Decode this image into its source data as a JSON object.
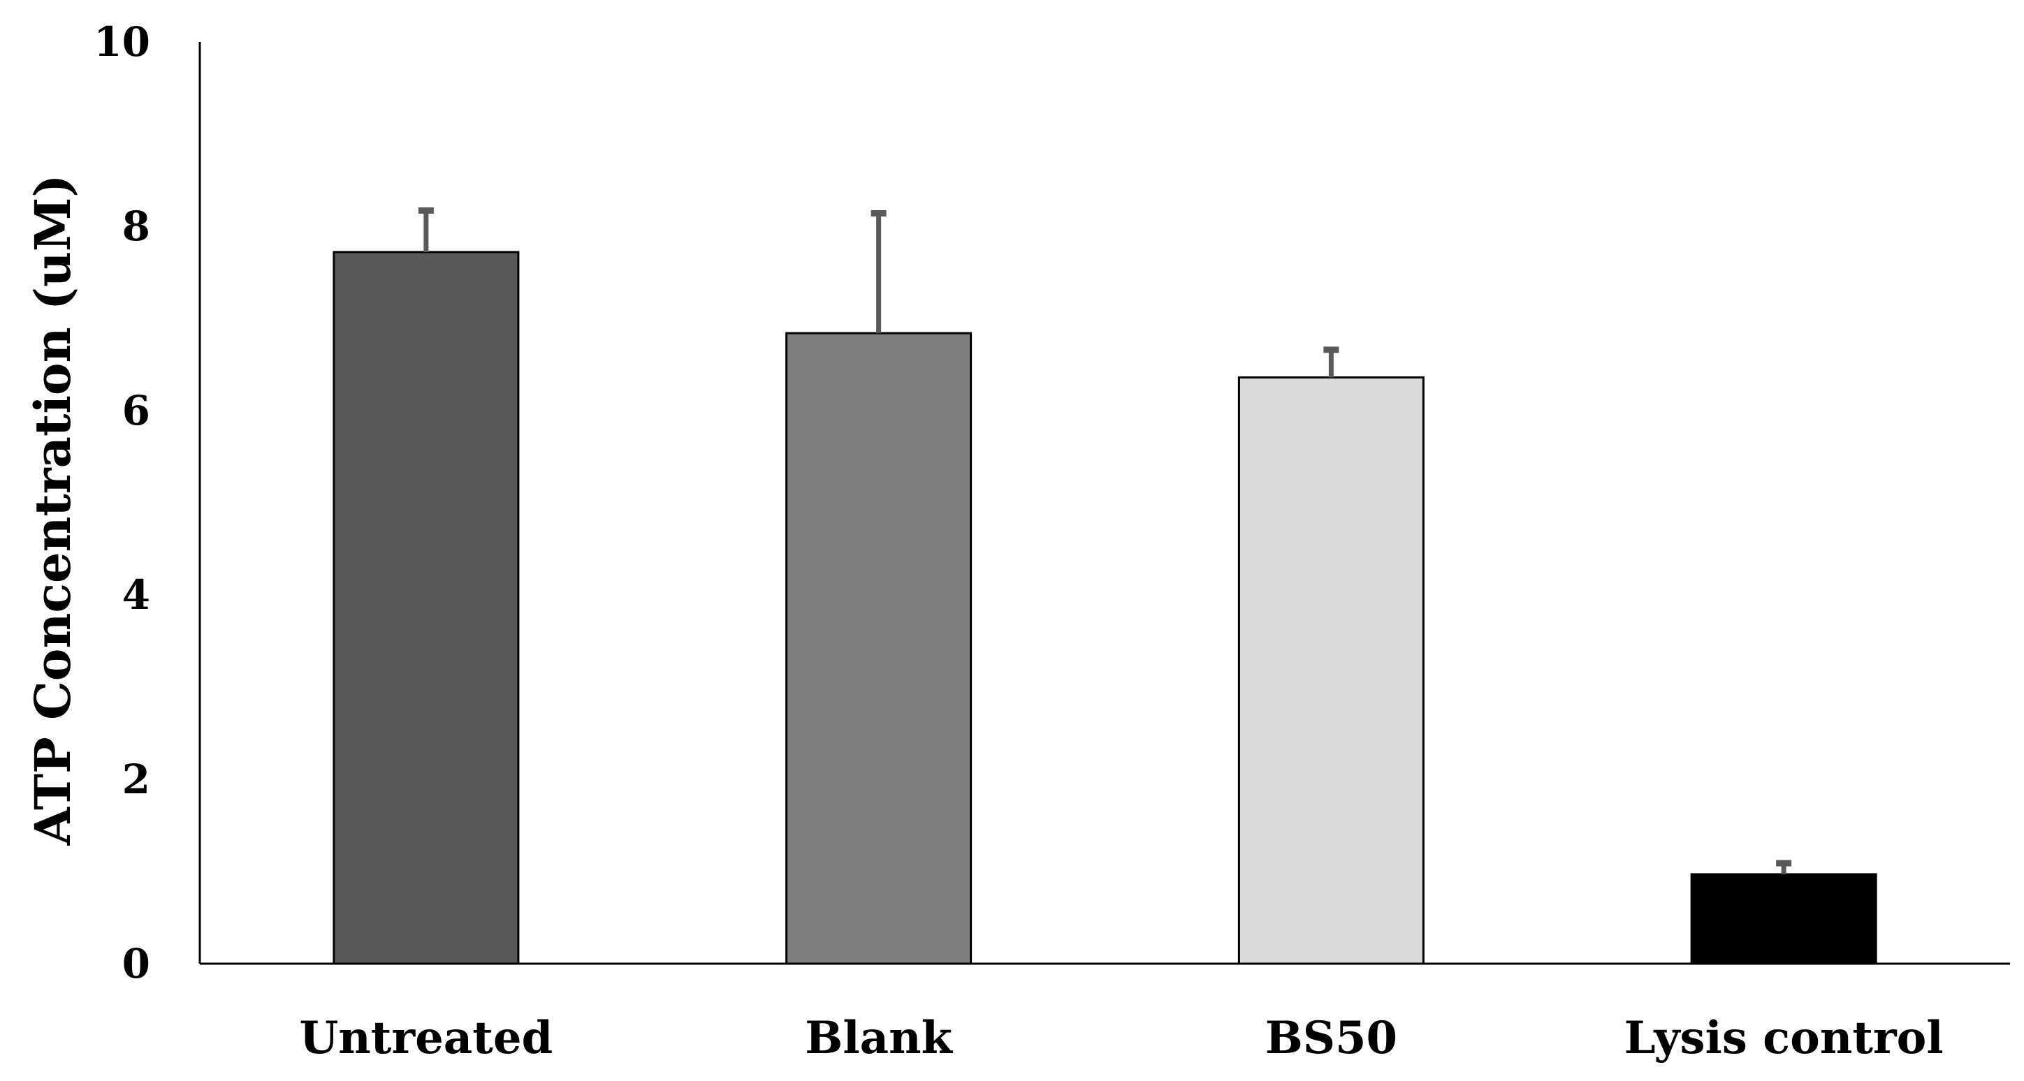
{
  "chart_data": {
    "type": "bar",
    "title": "",
    "xlabel": "",
    "ylabel": "ATP Concentration (uM)",
    "ylim": [
      0,
      10
    ],
    "yticks": [
      0,
      2,
      4,
      6,
      8,
      10
    ],
    "ytick_labels": [
      "0",
      "2",
      "4",
      "6",
      "8",
      "10"
    ],
    "grid": false,
    "legend": "none",
    "categories": [
      "Untreated",
      "Blank",
      "BS50",
      "Lysis control"
    ],
    "values": [
      7.72,
      6.84,
      6.36,
      0.97
    ],
    "error_upper": [
      0.45,
      1.3,
      0.3,
      0.12
    ],
    "bar_colors": [
      "#595959",
      "#7f7f7f",
      "#d9d9d9",
      "#000000"
    ],
    "bar_edge_color": "#000000",
    "error_bar_color": "#595959"
  }
}
